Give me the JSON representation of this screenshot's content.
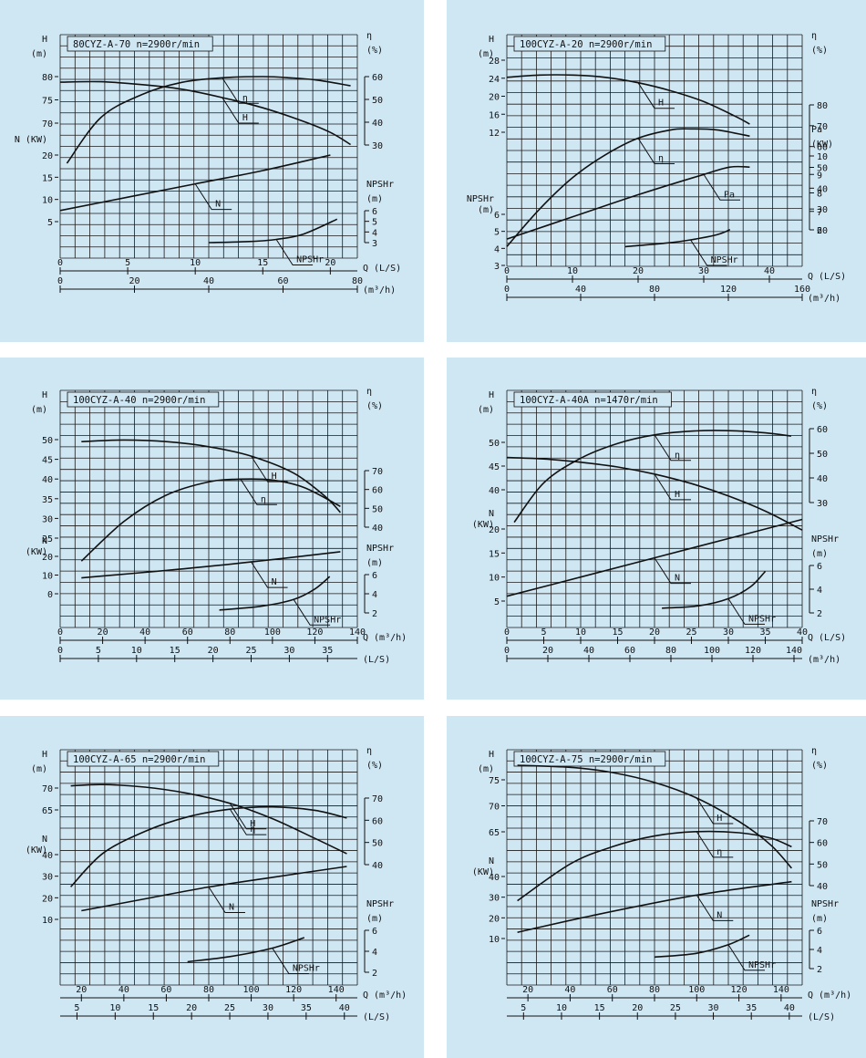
{
  "colors": {
    "panel_background": "#cfe6f3",
    "page_background": "#ffffff",
    "ink": "#111111"
  },
  "chart_data": [
    {
      "type": "line",
      "title": "80CYZ-A-70 n=2900r/min",
      "x_primary": {
        "label": "Q (L/S)",
        "ticks": [
          "0",
          "5",
          "10",
          "15",
          "20"
        ],
        "range": [
          0,
          22
        ]
      },
      "x_secondary": {
        "label": "(m³/h)",
        "ticks": [
          "0",
          "20",
          "40",
          "60",
          "80"
        ],
        "range": [
          0,
          80
        ]
      },
      "left_axes": [
        {
          "label": "H",
          "unit": "(m)",
          "ticks": [
            "80",
            "75",
            "70"
          ]
        },
        {
          "label": "N (KW)",
          "ticks": [
            "20",
            "15",
            "10",
            "5"
          ]
        }
      ],
      "right_axes": [
        {
          "label": "η",
          "unit": "(%)",
          "ticks": [
            "60",
            "50",
            "40",
            "30"
          ]
        },
        {
          "label": "NPSHr",
          "unit": "(m)",
          "ticks": [
            "6",
            "5",
            "4",
            "3"
          ]
        }
      ],
      "series": [
        {
          "name": "H",
          "x": [
            0,
            3,
            6,
            9,
            12,
            15,
            18,
            20,
            21.5
          ],
          "y": [
            78.8,
            78.9,
            78.3,
            77.3,
            75.5,
            73.3,
            70.4,
            68,
            65.4
          ]
        },
        {
          "name": "η",
          "x": [
            0.5,
            3,
            6,
            9,
            12,
            15,
            17,
            19,
            21.5
          ],
          "y": [
            22,
            42,
            52,
            57.5,
            59.5,
            60,
            59.5,
            58.5,
            56
          ]
        },
        {
          "name": "N",
          "x": [
            0,
            5,
            10,
            15,
            20
          ],
          "y": [
            7.5,
            10.5,
            13.5,
            16.5,
            20
          ]
        },
        {
          "name": "NPSHr",
          "x": [
            11,
            14,
            16,
            18,
            20.5
          ],
          "y": [
            3,
            3.1,
            3.3,
            3.8,
            5.2
          ]
        }
      ]
    },
    {
      "type": "line",
      "title": "100CYZ-A-20 n=2900r/min",
      "x_primary": {
        "label": "Q (L/S)",
        "ticks": [
          "0",
          "10",
          "20",
          "30",
          "40"
        ],
        "range": [
          0,
          45
        ]
      },
      "x_secondary": {
        "label": "(m³/h)",
        "ticks": [
          "0",
          "40",
          "80",
          "120",
          "160"
        ],
        "range": [
          0,
          160
        ]
      },
      "left_axes": [
        {
          "label": "H",
          "unit": "(m)",
          "ticks": [
            "28",
            "24",
            "20",
            "16",
            "12"
          ]
        },
        {
          "label": "NPSHr",
          "unit": "(m)",
          "ticks": [
            "6",
            "5",
            "4",
            "3"
          ]
        }
      ],
      "right_axes": [
        {
          "label": "η",
          "unit": "(%)",
          "ticks": [
            "80",
            "70",
            "60",
            "50",
            "40",
            "30",
            "20"
          ]
        },
        {
          "label": "Pa",
          "unit": "(KW)",
          "ticks": [
            "10",
            "9",
            "8",
            "7",
            "6"
          ]
        }
      ],
      "series": [
        {
          "name": "H",
          "x": [
            0,
            5,
            10,
            15,
            20,
            25,
            30,
            35,
            37
          ],
          "y": [
            24.2,
            24.7,
            24.7,
            24.2,
            23,
            21.2,
            18.8,
            15.4,
            13.8
          ]
        },
        {
          "name": "η",
          "x": [
            0,
            5,
            10,
            15,
            20,
            25,
            28,
            32,
            37
          ],
          "y": [
            12,
            30,
            45,
            56,
            64,
            68,
            68.5,
            68,
            65
          ]
        },
        {
          "name": "Pa",
          "x": [
            0,
            10,
            20,
            30,
            34,
            37
          ],
          "y": [
            5.5,
            6.7,
            7.9,
            9.0,
            9.4,
            9.4
          ]
        },
        {
          "name": "NPSHr",
          "x": [
            18,
            24,
            28,
            32,
            34
          ],
          "y": [
            4.1,
            4.3,
            4.5,
            4.8,
            5.1
          ]
        }
      ]
    },
    {
      "type": "line",
      "title": "100CYZ-A-40 n=2900r/min",
      "x_primary": {
        "label": "Q (m³/h)",
        "ticks": [
          "0",
          "20",
          "40",
          "60",
          "80",
          "100",
          "120",
          "140"
        ],
        "range": [
          0,
          140
        ]
      },
      "x_secondary": {
        "label": "(L/S)",
        "ticks": [
          "0",
          "5",
          "10",
          "15",
          "20",
          "25",
          "30",
          "35"
        ],
        "range": [
          0,
          38.9
        ]
      },
      "left_axes": [
        {
          "label": "H",
          "unit": "(m)",
          "ticks": [
            "50",
            "45",
            "40",
            "35",
            "30",
            "25"
          ]
        },
        {
          "label": "N",
          "unit": "(KW)",
          "ticks": [
            "20",
            "10",
            "0"
          ]
        }
      ],
      "right_axes": [
        {
          "label": "η",
          "unit": "(%)",
          "ticks": [
            "70",
            "60",
            "50",
            "40"
          ]
        },
        {
          "label": "NPSHr",
          "unit": "(m)",
          "ticks": [
            "6",
            "4",
            "2"
          ]
        }
      ],
      "series": [
        {
          "name": "H",
          "x": [
            10,
            30,
            50,
            70,
            90,
            110,
            125,
            132
          ],
          "y": [
            49.5,
            49.9,
            49.5,
            48.2,
            45.8,
            41.5,
            35.5,
            31.5
          ]
        },
        {
          "name": "η",
          "x": [
            10,
            30,
            50,
            70,
            85,
            100,
            115,
            132
          ],
          "y": [
            22,
            43,
            57,
            64,
            65.5,
            65,
            61,
            51
          ]
        },
        {
          "name": "N",
          "x": [
            10,
            50,
            90,
            132
          ],
          "y": [
            8.5,
            12.5,
            17,
            22.5
          ]
        },
        {
          "name": "NPSHr",
          "x": [
            75,
            95,
            110,
            120,
            127
          ],
          "y": [
            2.3,
            2.7,
            3.4,
            4.5,
            5.8
          ]
        }
      ]
    },
    {
      "type": "line",
      "title": "100CYZ-A-40A n=1470r/min",
      "x_primary": {
        "label": "Q (L/S)",
        "ticks": [
          "0",
          "5",
          "10",
          "15",
          "20",
          "25",
          "30",
          "35",
          "40"
        ],
        "range": [
          0,
          40
        ]
      },
      "x_secondary": {
        "label": "(m³/h)",
        "ticks": [
          "0",
          "20",
          "40",
          "60",
          "80",
          "100",
          "120",
          "140"
        ],
        "range": [
          0,
          144
        ]
      },
      "left_axes": [
        {
          "label": "H",
          "unit": "(m)",
          "ticks": [
            "50",
            "45",
            "40"
          ]
        },
        {
          "label": "N",
          "unit": "(KW)",
          "ticks": [
            "20",
            "15",
            "10",
            "5"
          ]
        }
      ],
      "right_axes": [
        {
          "label": "η",
          "unit": "(%)",
          "ticks": [
            "60",
            "50",
            "40",
            "30"
          ]
        },
        {
          "label": "NPSHr",
          "unit": "(m)",
          "ticks": [
            "6",
            "4",
            "2"
          ]
        }
      ],
      "series": [
        {
          "name": "H",
          "x": [
            0,
            5,
            10,
            15,
            20,
            25,
            30,
            35,
            40
          ],
          "y": [
            46.8,
            46.5,
            45.8,
            44.8,
            43.3,
            41.3,
            38.7,
            35.5,
            31.5
          ]
        },
        {
          "name": "η",
          "x": [
            1,
            5,
            10,
            15,
            20,
            25,
            30,
            35,
            38.5
          ],
          "y": [
            22,
            38,
            48,
            54,
            57.5,
            59,
            59.2,
            58.3,
            57
          ]
        },
        {
          "name": "N",
          "x": [
            0,
            10,
            20,
            30,
            40
          ],
          "y": [
            6,
            10,
            14,
            18,
            22
          ]
        },
        {
          "name": "NPSHr",
          "x": [
            21,
            26,
            30,
            33,
            35
          ],
          "y": [
            2.4,
            2.6,
            3.2,
            4.2,
            5.5
          ]
        }
      ]
    },
    {
      "type": "line",
      "title": "100CYZ-A-65 n=2900r/min",
      "x_primary": {
        "label": "Q (m³/h)",
        "ticks": [
          "20",
          "40",
          "60",
          "80",
          "100",
          "120",
          "140"
        ],
        "range": [
          10,
          150
        ]
      },
      "x_secondary": {
        "label": "(L/S)",
        "ticks": [
          "5",
          "10",
          "15",
          "20",
          "25",
          "30",
          "35",
          "40"
        ],
        "range": [
          2.8,
          41.7
        ]
      },
      "left_axes": [
        {
          "label": "H",
          "unit": "(m)",
          "ticks": [
            "70",
            "65"
          ]
        },
        {
          "label": "N",
          "unit": "(KW)",
          "ticks": [
            "40",
            "30",
            "20",
            "10"
          ]
        }
      ],
      "right_axes": [
        {
          "label": "η",
          "unit": "(%)",
          "ticks": [
            "70",
            "60",
            "50",
            "40"
          ]
        },
        {
          "label": "NPSHr",
          "unit": "(m)",
          "ticks": [
            "6",
            "4",
            "2"
          ]
        }
      ],
      "series": [
        {
          "name": "H",
          "x": [
            15,
            30,
            50,
            70,
            90,
            110,
            130,
            145
          ],
          "y": [
            70.5,
            70.8,
            70.2,
            68.8,
            66.5,
            63,
            58.5,
            55
          ]
        },
        {
          "name": "η",
          "x": [
            15,
            30,
            50,
            70,
            90,
            110,
            130,
            145
          ],
          "y": [
            30,
            45,
            55,
            61.5,
            65,
            66,
            64.5,
            61
          ]
        },
        {
          "name": "N",
          "x": [
            20,
            50,
            80,
            110,
            145
          ],
          "y": [
            14,
            19.5,
            25,
            29.5,
            34.5
          ]
        },
        {
          "name": "NPSHr",
          "x": [
            70,
            90,
            110,
            125
          ],
          "y": [
            3,
            3.5,
            4.3,
            5.3
          ]
        }
      ]
    },
    {
      "type": "line",
      "title": "100CYZ-A-75 n=2900r/min",
      "x_primary": {
        "label": "Q (m³/h)",
        "ticks": [
          "20",
          "40",
          "60",
          "80",
          "100",
          "120",
          "140"
        ],
        "range": [
          10,
          150
        ]
      },
      "x_secondary": {
        "label": "(L/S)",
        "ticks": [
          "5",
          "10",
          "15",
          "20",
          "25",
          "30",
          "35",
          "40"
        ],
        "range": [
          2.8,
          41.7
        ]
      },
      "left_axes": [
        {
          "label": "H",
          "unit": "(m)",
          "ticks": [
            "75",
            "70",
            "65"
          ]
        },
        {
          "label": "N",
          "unit": "(KW)",
          "ticks": [
            "40",
            "30",
            "20",
            "10"
          ]
        }
      ],
      "right_axes": [
        {
          "label": "η",
          "unit": "(%)",
          "ticks": [
            "70",
            "60",
            "50",
            "40"
          ]
        },
        {
          "label": "NPSHr",
          "unit": "(m)",
          "ticks": [
            "6",
            "4",
            "2"
          ]
        }
      ],
      "series": [
        {
          "name": "H",
          "x": [
            15,
            40,
            60,
            80,
            100,
            120,
            135,
            145
          ],
          "y": [
            77.8,
            77.4,
            76.4,
            74.5,
            71.5,
            67,
            62.5,
            58
          ]
        },
        {
          "name": "η",
          "x": [
            15,
            40,
            60,
            80,
            100,
            120,
            135,
            145
          ],
          "y": [
            33,
            50,
            58,
            63,
            65,
            64.5,
            62,
            58
          ]
        },
        {
          "name": "N",
          "x": [
            15,
            50,
            100,
            145
          ],
          "y": [
            13,
            21,
            31,
            37.5
          ]
        },
        {
          "name": "NPSHr",
          "x": [
            80,
            100,
            115,
            125
          ],
          "y": [
            3.2,
            3.6,
            4.5,
            5.5
          ]
        }
      ]
    }
  ]
}
